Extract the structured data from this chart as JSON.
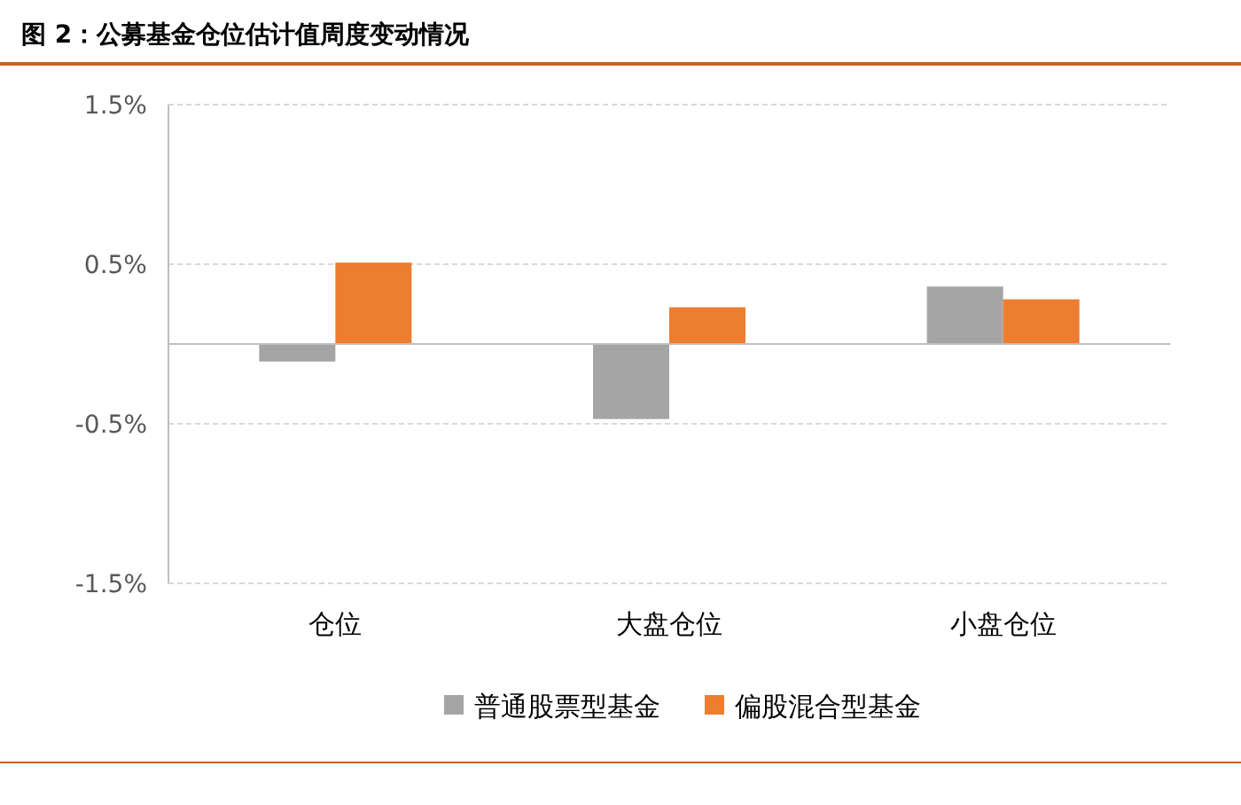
{
  "chart_data": {
    "type": "bar",
    "title": "图 2：公募基金仓位估计值周度变动情况",
    "categories": [
      "仓位",
      "大盘仓位",
      "小盘仓位"
    ],
    "series": [
      {
        "name": "普通股票型基金",
        "color": "#a5a5a5",
        "values": [
          -0.11,
          -0.47,
          0.36
        ]
      },
      {
        "name": "偏股混合型基金",
        "color": "#ed7d31",
        "values": [
          0.51,
          0.23,
          0.28
        ]
      }
    ],
    "ylim": [
      -1.5,
      1.5
    ],
    "yticks": [
      {
        "value": -1.5,
        "label": "-1.5%"
      },
      {
        "value": -0.5,
        "label": "-0.5%"
      },
      {
        "value": 0.5,
        "label": "0.5%"
      },
      {
        "value": 1.5,
        "label": "1.5%"
      }
    ],
    "grid": "y",
    "legend": "bottom"
  }
}
